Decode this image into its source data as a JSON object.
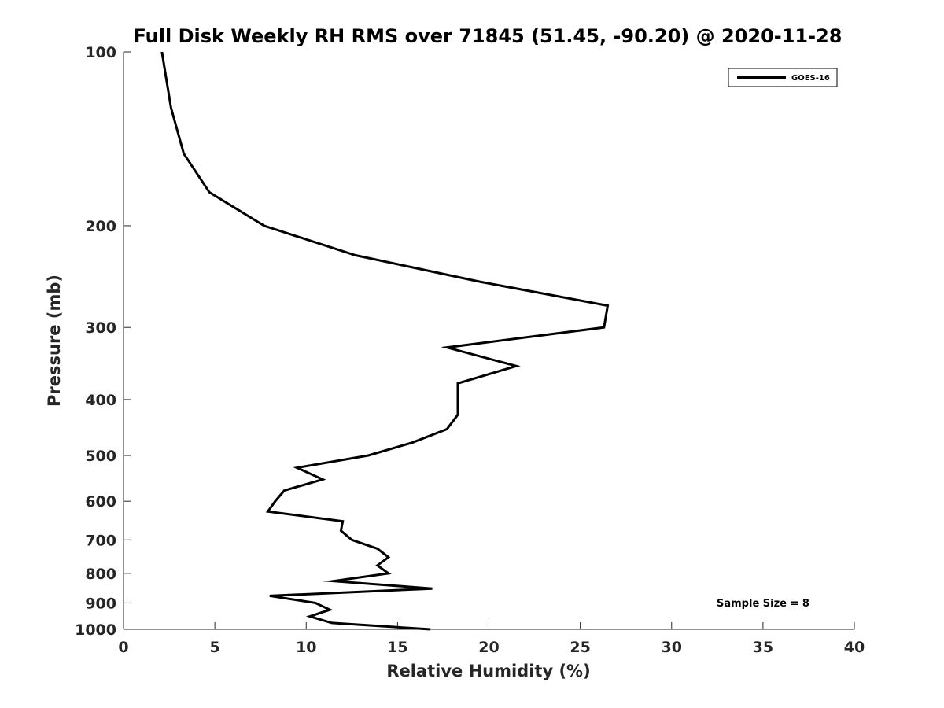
{
  "chart_data": {
    "type": "line",
    "title": "Full Disk Weekly RH RMS over 71845 (51.45, -90.20) @ 2020-11-28",
    "xlabel": "Relative Humidity (%)",
    "ylabel": "Pressure (mb)",
    "xlim": [
      0,
      40
    ],
    "ylim": [
      100,
      1000
    ],
    "yscale": "log",
    "y_reversed": true,
    "grid": false,
    "legend_position": "top-right",
    "x_ticks": [
      0,
      5,
      10,
      15,
      20,
      25,
      30,
      35,
      40
    ],
    "y_ticks": [
      100,
      200,
      300,
      400,
      500,
      600,
      700,
      800,
      900,
      1000
    ],
    "annotation": "Sample Size = 8",
    "series": [
      {
        "name": "GOES-16",
        "color": "#000000",
        "points": [
          [
            2.1,
            100
          ],
          [
            2.6,
            125
          ],
          [
            3.3,
            150
          ],
          [
            4.7,
            175
          ],
          [
            7.7,
            200
          ],
          [
            12.7,
            225
          ],
          [
            19.5,
            250
          ],
          [
            26.5,
            275
          ],
          [
            26.3,
            300
          ],
          [
            17.7,
            325
          ],
          [
            21.5,
            350
          ],
          [
            18.3,
            375
          ],
          [
            18.3,
            400
          ],
          [
            18.3,
            425
          ],
          [
            17.7,
            450
          ],
          [
            15.8,
            475
          ],
          [
            13.4,
            500
          ],
          [
            9.5,
            525
          ],
          [
            10.9,
            550
          ],
          [
            8.8,
            575
          ],
          [
            8.3,
            600
          ],
          [
            7.9,
            625
          ],
          [
            12.0,
            650
          ],
          [
            11.9,
            675
          ],
          [
            12.5,
            700
          ],
          [
            13.9,
            725
          ],
          [
            14.5,
            750
          ],
          [
            13.9,
            775
          ],
          [
            14.5,
            800
          ],
          [
            11.5,
            825
          ],
          [
            16.9,
            850
          ],
          [
            8.0,
            875
          ],
          [
            10.5,
            900
          ],
          [
            11.3,
            925
          ],
          [
            10.2,
            950
          ],
          [
            11.4,
            975
          ],
          [
            16.8,
            1000
          ]
        ]
      }
    ]
  }
}
